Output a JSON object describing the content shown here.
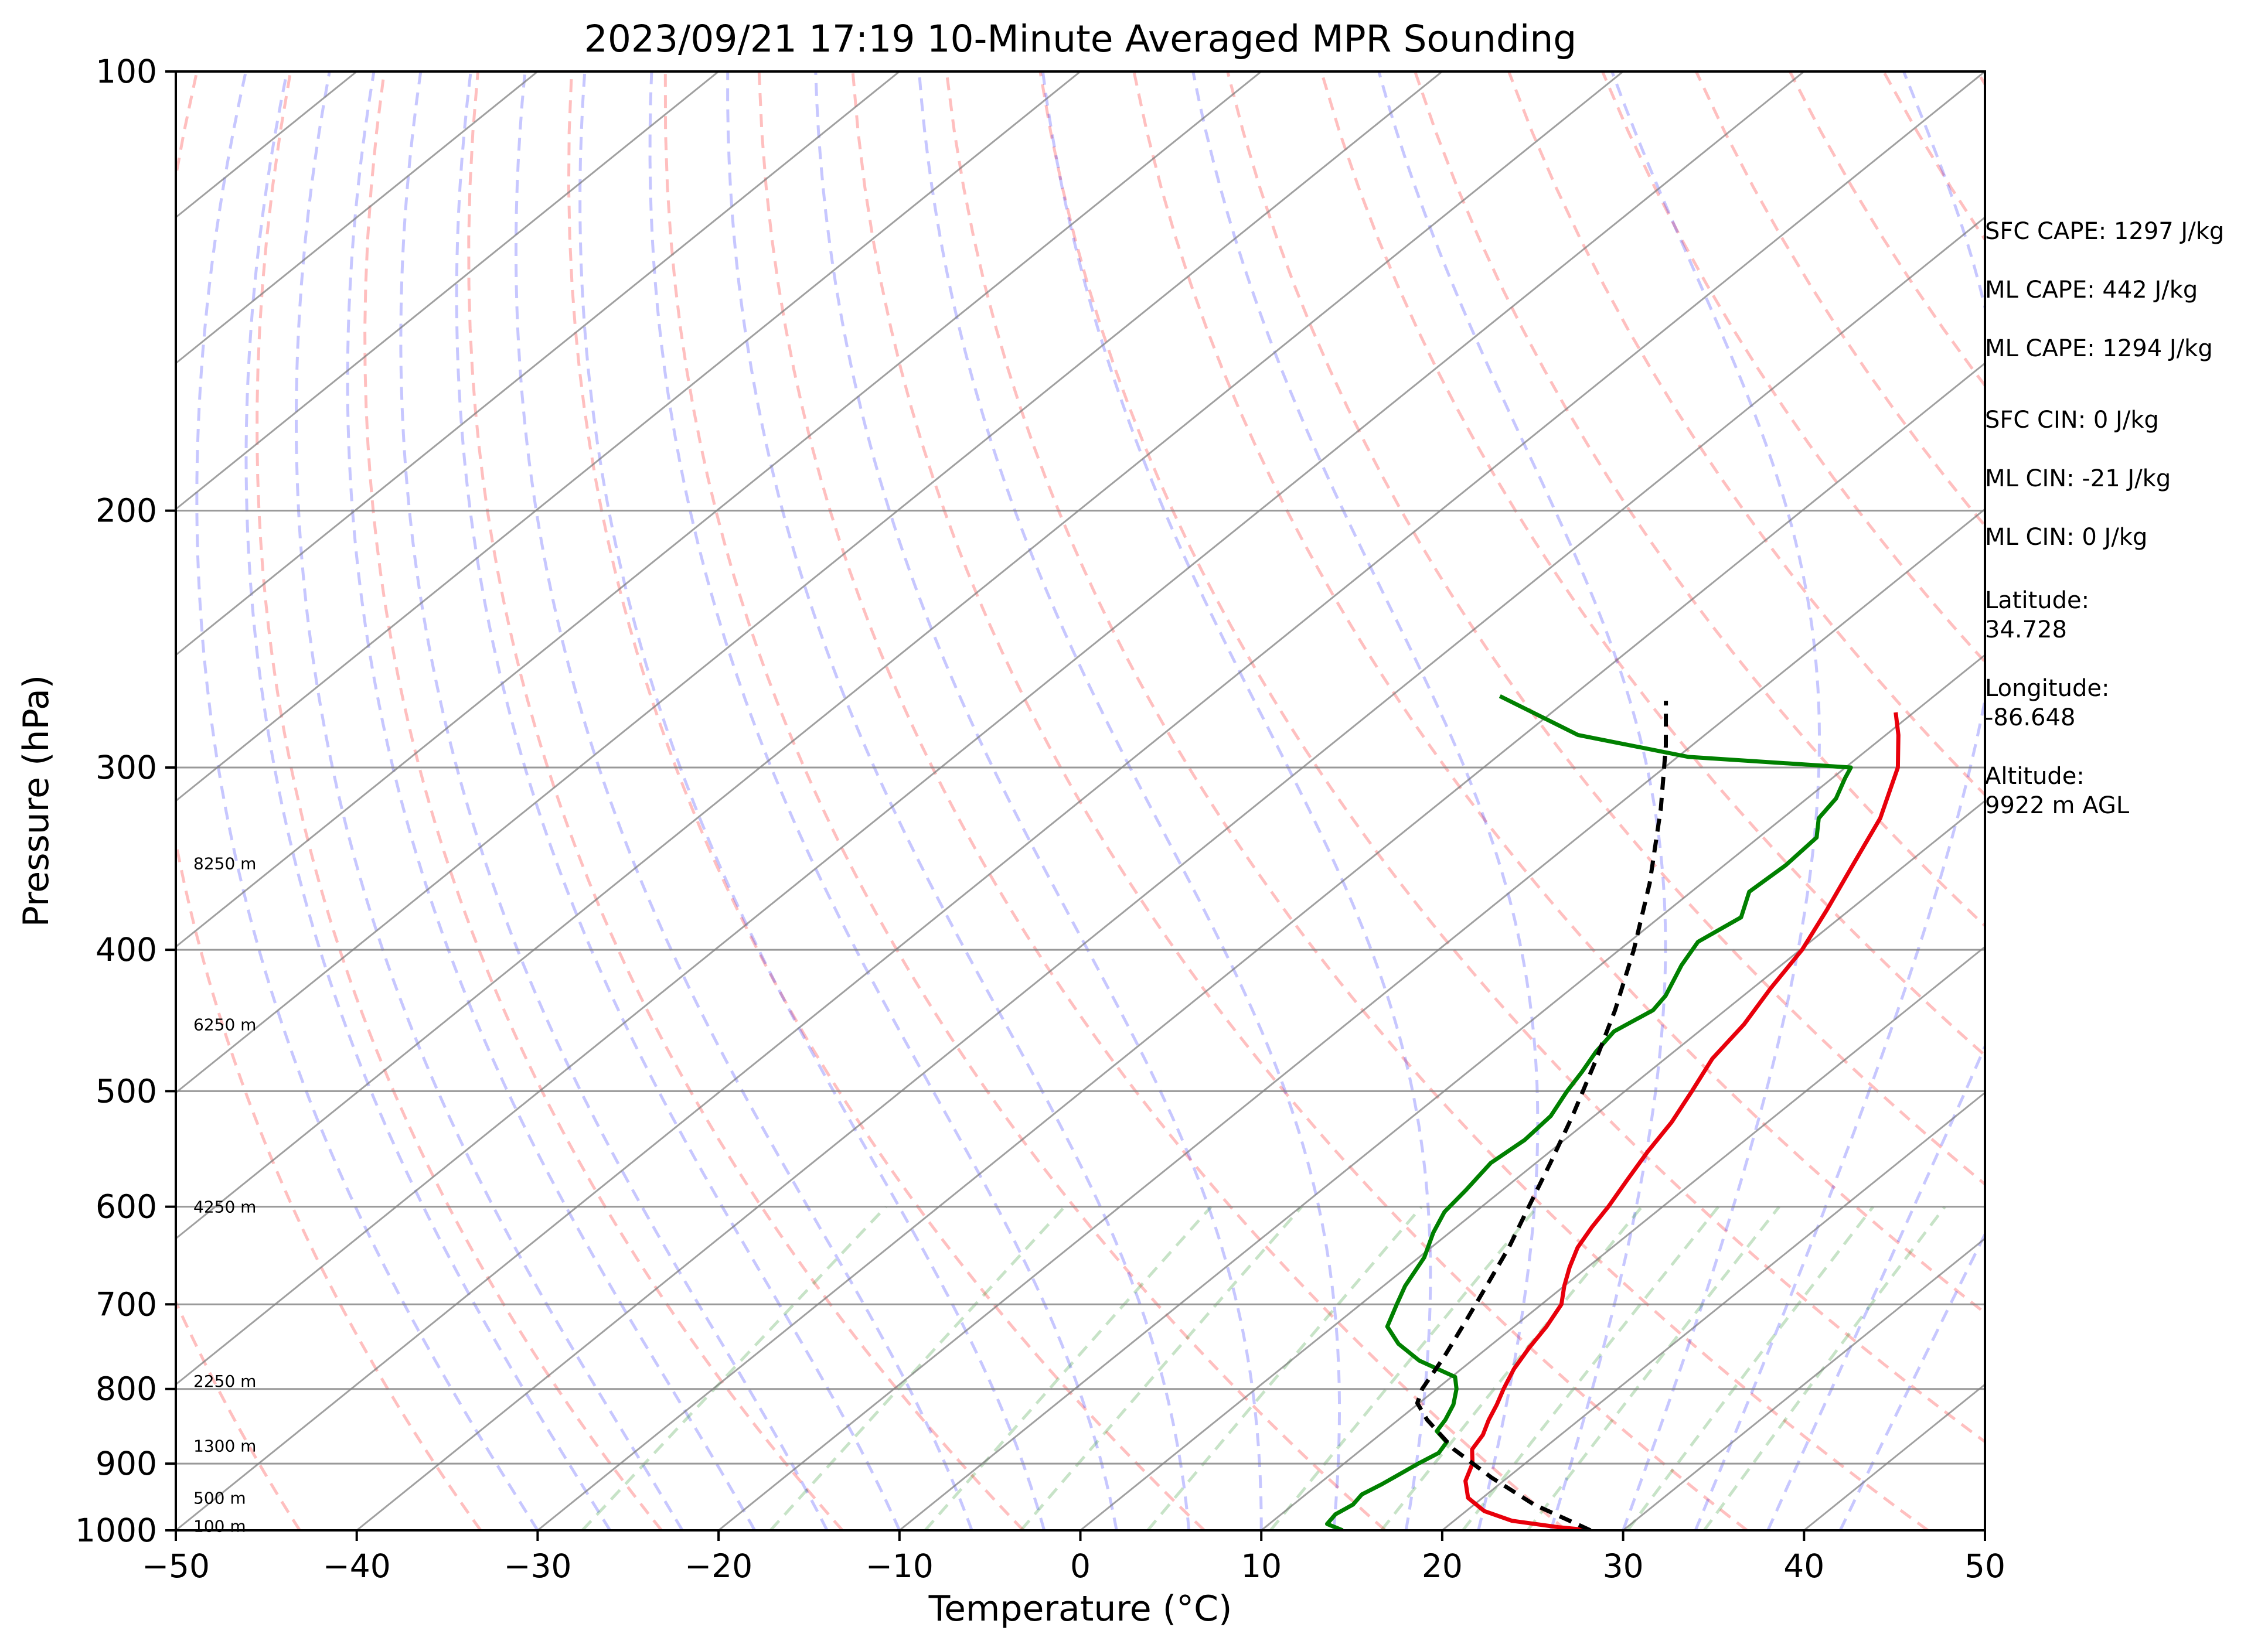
{
  "chart_data": {
    "type": "line",
    "subtype": "skew-T log-P",
    "title": "2023/09/21 17:19 10-Minute Averaged MPR Sounding",
    "xlabel": "Temperature (°C)",
    "ylabel": "Pressure (hPa)",
    "xlim": [
      -50,
      50
    ],
    "ylim": [
      1000,
      100
    ],
    "y_scale": "log",
    "x_ticks": [
      "−50",
      "−40",
      "−30",
      "−20",
      "−10",
      "0",
      "10",
      "20",
      "30",
      "40",
      "50"
    ],
    "y_ticks": [
      "100",
      "200",
      "300",
      "400",
      "500",
      "600",
      "700",
      "800",
      "900",
      "1000"
    ],
    "grid": true,
    "height_labels": [
      {
        "p": 349,
        "label": "8250 m"
      },
      {
        "p": 450,
        "label": "6250 m"
      },
      {
        "p": 600,
        "label": "4250 m"
      },
      {
        "p": 790,
        "label": "2250 m"
      },
      {
        "p": 875,
        "label": "1300 m"
      },
      {
        "p": 950,
        "label": "500 m"
      },
      {
        "p": 993,
        "label": "100 m"
      }
    ],
    "series": [
      {
        "role": "temperature",
        "color": "#e8000b",
        "points": [
          [
            1000,
            28.2
          ],
          [
            995,
            26.2
          ],
          [
            985,
            23.2
          ],
          [
            970,
            21.0
          ],
          [
            950,
            19.2
          ],
          [
            925,
            17.9
          ],
          [
            900,
            17.1
          ],
          [
            880,
            16.1
          ],
          [
            860,
            15.7
          ],
          [
            840,
            15.0
          ],
          [
            820,
            14.4
          ],
          [
            800,
            13.7
          ],
          [
            775,
            12.9
          ],
          [
            750,
            12.3
          ],
          [
            725,
            11.8
          ],
          [
            700,
            11.1
          ],
          [
            680,
            10.0
          ],
          [
            660,
            9.0
          ],
          [
            640,
            8.1
          ],
          [
            620,
            7.5
          ],
          [
            600,
            7.0
          ],
          [
            575,
            6.2
          ],
          [
            550,
            5.4
          ],
          [
            525,
            4.7
          ],
          [
            500,
            3.7
          ],
          [
            475,
            2.6
          ],
          [
            450,
            2.0
          ],
          [
            425,
            1.0
          ],
          [
            400,
            0.1
          ],
          [
            375,
            -1.3
          ],
          [
            350,
            -2.9
          ],
          [
            325,
            -4.6
          ],
          [
            300,
            -7.1
          ],
          [
            285,
            -9.3
          ],
          [
            275,
            -11.0
          ]
        ]
      },
      {
        "role": "dewpoint",
        "color": "#008000",
        "points": [
          [
            1000,
            14.5
          ],
          [
            990,
            13.2
          ],
          [
            975,
            13.0
          ],
          [
            960,
            13.3
          ],
          [
            945,
            13.1
          ],
          [
            930,
            13.5
          ],
          [
            915,
            13.8
          ],
          [
            900,
            14.1
          ],
          [
            885,
            14.5
          ],
          [
            870,
            14.2
          ],
          [
            855,
            12.9
          ],
          [
            840,
            12.6
          ],
          [
            820,
            12.0
          ],
          [
            800,
            11.1
          ],
          [
            785,
            10.2
          ],
          [
            765,
            7.1
          ],
          [
            745,
            4.8
          ],
          [
            725,
            3.0
          ],
          [
            700,
            2.0
          ],
          [
            680,
            1.2
          ],
          [
            650,
            0.3
          ],
          [
            625,
            -0.9
          ],
          [
            605,
            -1.7
          ],
          [
            585,
            -2.0
          ],
          [
            560,
            -2.5
          ],
          [
            540,
            -2.2
          ],
          [
            520,
            -2.4
          ],
          [
            500,
            -3.2
          ],
          [
            485,
            -3.7
          ],
          [
            470,
            -4.3
          ],
          [
            455,
            -4.7
          ],
          [
            440,
            -4.0
          ],
          [
            430,
            -4.3
          ],
          [
            410,
            -5.5
          ],
          [
            395,
            -6.2
          ],
          [
            380,
            -5.5
          ],
          [
            365,
            -6.8
          ],
          [
            350,
            -6.6
          ],
          [
            335,
            -6.8
          ],
          [
            325,
            -8.0
          ],
          [
            315,
            -8.4
          ],
          [
            305,
            -9.3
          ],
          [
            300,
            -9.7
          ],
          [
            295,
            -19.4
          ],
          [
            285,
            -27.0
          ],
          [
            268,
            -34.0
          ]
        ]
      },
      {
        "role": "parcel",
        "color": "#000000",
        "points": [
          [
            1000,
            28.2
          ],
          [
            960,
            23.3
          ],
          [
            920,
            19.1
          ],
          [
            880,
            15.1
          ],
          [
            840,
            11.6
          ],
          [
            818,
            9.9
          ],
          [
            800,
            9.2
          ],
          [
            760,
            8.2
          ],
          [
            720,
            7.0
          ],
          [
            680,
            5.7
          ],
          [
            640,
            4.3
          ],
          [
            600,
            2.6
          ],
          [
            560,
            0.8
          ],
          [
            520,
            -1.2
          ],
          [
            480,
            -3.5
          ],
          [
            440,
            -6.1
          ],
          [
            400,
            -9.2
          ],
          [
            360,
            -12.9
          ],
          [
            320,
            -17.4
          ],
          [
            290,
            -21.4
          ],
          [
            270,
            -24.5
          ]
        ]
      }
    ]
  },
  "side_panel": {
    "sfc_cape": "SFC CAPE: 1297 J/kg",
    "ml_cape_1": "ML CAPE: 442 J/kg",
    "ml_cape_2": "ML CAPE: 1294 J/kg",
    "sfc_cin": "SFC CIN: 0 J/kg",
    "ml_cin_1": "ML CIN: -21 J/kg",
    "ml_cin_2": "ML CIN: 0 J/kg",
    "latitude": "Latitude:\n34.728",
    "longitude": "Longitude:\n-86.648",
    "altitude": "Altitude:\n9922 m AGL"
  },
  "colors": {
    "temperature": "#e8000b",
    "dewpoint": "#008000",
    "parcel": "#000000",
    "dry_adiabat": "#ff0000",
    "moist_adiabat": "#0000ff",
    "mixing_ratio": "#008000",
    "isotherm": "#808080",
    "isobar": "#808080"
  }
}
